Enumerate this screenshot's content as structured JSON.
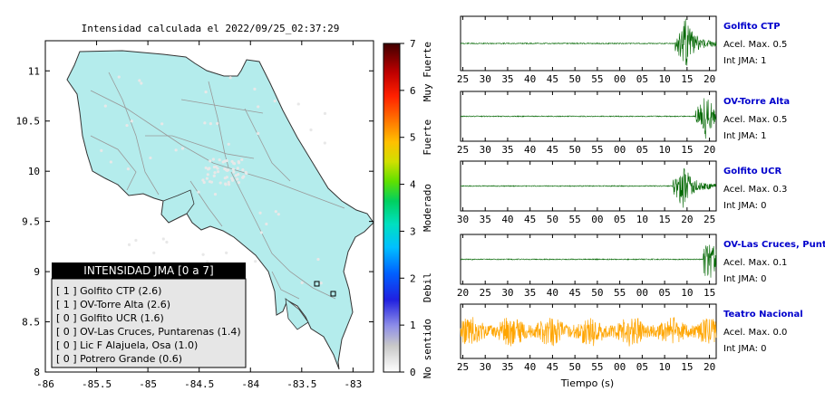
{
  "map": {
    "title": "Intensidad calculada el 2022/09/25_02:37:29",
    "x_ticks": [
      "-86",
      "-85.5",
      "-85",
      "-84.5",
      "-84",
      "-83.5",
      "-83"
    ],
    "y_ticks": [
      "8",
      "8.5",
      "9",
      "9.5",
      "10",
      "10.5",
      "11"
    ],
    "xlim": [
      -86,
      -82.8
    ],
    "ylim": [
      8,
      11.3
    ],
    "colors": {
      "land": "#b4ecec",
      "road": "#999999",
      "border": "#333333"
    }
  },
  "colorbar": {
    "ticks": [
      "0",
      "1",
      "2",
      "3",
      "4",
      "5",
      "6",
      "7"
    ],
    "labels": [
      "No sentido",
      "Debil",
      "Moderado",
      "Fuerte",
      "Muy Fuerte"
    ]
  },
  "legend": {
    "title": "INTENSIDAD JMA [0 a 7]",
    "items": [
      "[ 1 ]  Golfito CTP (2.6)",
      "[ 1 ]  OV-Torre Alta (2.6)",
      "[ 0 ]  Golfito UCR (1.6)",
      "[ 0 ]  OV-Las Cruces, Puntarenas (1.4)",
      "[ 0 ]  Lic F Alajuela, Osa (1.0)",
      "[ 0 ]  Potrero Grande (0.6)"
    ]
  },
  "chart_data": {
    "type": "line",
    "xlabel": "Tiempo (s)",
    "traces": [
      {
        "name": "Golfito CTP",
        "accel_label": "Acel. Max. 0.5",
        "int_label": "Int JMA: 1",
        "color": "#006600",
        "ticks": [
          "25",
          "30",
          "35",
          "40",
          "45",
          "50",
          "55",
          "00",
          "05",
          "10",
          "15",
          "20"
        ],
        "event_start_fraction": 0.84,
        "peak_fraction": 0.88
      },
      {
        "name": "OV-Torre Alta",
        "accel_label": "Acel. Max. 0.5",
        "int_label": "Int JMA: 1",
        "color": "#006600",
        "ticks": [
          "25",
          "30",
          "35",
          "40",
          "45",
          "50",
          "55",
          "00",
          "05",
          "10",
          "15",
          "20"
        ],
        "event_start_fraction": 0.92,
        "peak_fraction": 0.96
      },
      {
        "name": "Golfito UCR",
        "accel_label": "Acel. Max. 0.3",
        "int_label": "Int JMA: 0",
        "color": "#006600",
        "ticks": [
          "30",
          "35",
          "40",
          "45",
          "50",
          "55",
          "00",
          "05",
          "10",
          "15",
          "20",
          "25"
        ],
        "event_start_fraction": 0.83,
        "peak_fraction": 0.87
      },
      {
        "name": "OV-Las Cruces, Puntar",
        "accel_label": "Acel. Max. 0.1",
        "int_label": "Int JMA: 0",
        "color": "#006600",
        "ticks": [
          "20",
          "25",
          "30",
          "35",
          "40",
          "45",
          "50",
          "55",
          "00",
          "05",
          "10",
          "15"
        ],
        "event_start_fraction": 0.95,
        "peak_fraction": 0.97
      },
      {
        "name": "Teatro Nacional",
        "accel_label": "Acel. Max. 0.0",
        "int_label": "Int JMA: 0",
        "color": "#ffa500",
        "ticks": [
          "25",
          "30",
          "35",
          "40",
          "45",
          "50",
          "55",
          "00",
          "05",
          "10",
          "15",
          "20"
        ],
        "event_start_fraction": 0,
        "peak_fraction": 0.6
      }
    ]
  }
}
